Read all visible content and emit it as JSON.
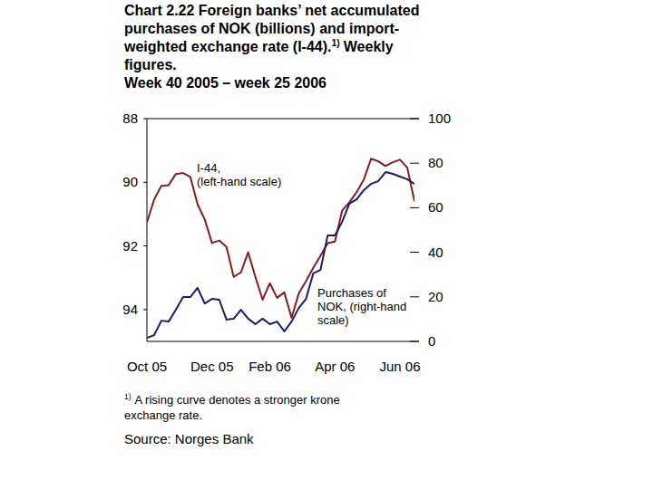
{
  "chart_data": {
    "type": "line",
    "title": "Chart 2.22 Foreign banks’ net accumulated\npurchases of NOK (billions) and import-\nweighted exchange rate (I-44).",
    "title_note_ref": "1)",
    "title_end": "Weekly\nfigures.",
    "subtitle": "Week 40 2005 – week 25 2006",
    "footnote_ref": "1)",
    "footnote": "A rising curve denotes a stronger krone\nexchange rate.",
    "source": "Source: Norges Bank",
    "categories": [
      "Oct 05",
      null,
      null,
      null,
      null,
      null,
      null,
      null,
      null,
      "Dec 05",
      null,
      null,
      null,
      null,
      null,
      null,
      null,
      "Feb 06",
      null,
      null,
      null,
      null,
      null,
      null,
      null,
      null,
      "Apr 06",
      null,
      null,
      null,
      null,
      null,
      null,
      null,
      null,
      "Jun 06",
      null,
      null
    ],
    "ylim": [
      95,
      88
    ],
    "yticks": [
      88,
      90,
      92,
      94
    ],
    "y2lim": [
      0,
      100
    ],
    "y2ticks": [
      0,
      20,
      40,
      60,
      80,
      100
    ],
    "series": [
      {
        "name": "I-44,\n(left-hand scale)",
        "color": "#8b1a1a",
        "values": [
          91.26,
          90.54,
          90.11,
          90.09,
          89.74,
          89.71,
          89.83,
          90.69,
          91.17,
          91.91,
          91.83,
          92.03,
          92.97,
          92.83,
          92.2,
          92.97,
          93.69,
          93.17,
          93.63,
          93.46,
          94.26,
          93.49,
          93.11,
          92.69,
          92.31,
          91.91,
          91.86,
          90.89,
          90.63,
          90.31,
          89.91,
          89.26,
          89.34,
          89.49,
          89.37,
          89.29,
          89.54,
          90.6
        ]
      },
      {
        "name": "Purchases of\nNOK, (right-hand\nscale)",
        "color": "#1a1a6e",
        "axis": "y2",
        "values": [
          1.6,
          2.8,
          9.3,
          8.9,
          14.2,
          19.9,
          19.9,
          24.0,
          17.0,
          19.1,
          18.7,
          9.8,
          10.2,
          14.2,
          10.2,
          7.7,
          10.2,
          7.7,
          8.9,
          4.5,
          8.9,
          15.0,
          19.1,
          30.5,
          32.1,
          47.6,
          47.6,
          53.7,
          61.8,
          63.8,
          67.9,
          70.7,
          72.0,
          76.0,
          75.2,
          74.0,
          72.8,
          70.7
        ]
      }
    ]
  }
}
